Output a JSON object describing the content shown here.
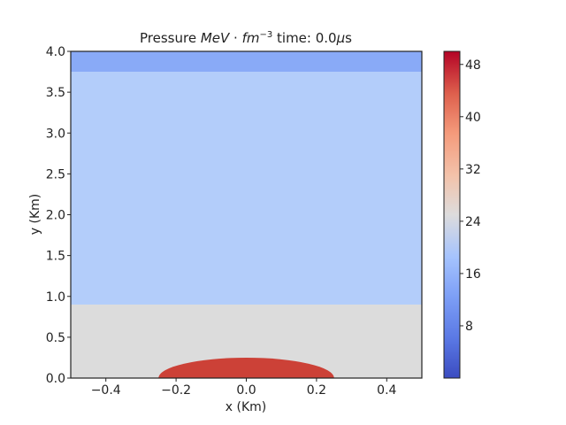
{
  "chart_data": {
    "type": "heatmap",
    "title": {
      "prefix": "Pressure ",
      "units_main": "MeV",
      "dot": " · ",
      "units_fm": "fm",
      "exponent": "−3",
      "time_text": " time: 0.0",
      "mu": "μ",
      "s": "s"
    },
    "xlabel": "x (Km)",
    "ylabel": "y (Km)",
    "xlim": [
      -0.5,
      0.5
    ],
    "ylim": [
      0.0,
      4.0
    ],
    "x_ticks": [
      {
        "value": -0.4,
        "label": "−0.4"
      },
      {
        "value": -0.2,
        "label": "−0.2"
      },
      {
        "value": 0.0,
        "label": "0.0"
      },
      {
        "value": 0.2,
        "label": "0.2"
      },
      {
        "value": 0.4,
        "label": "0.4"
      }
    ],
    "y_ticks": [
      {
        "value": 0.0,
        "label": "0.0"
      },
      {
        "value": 0.5,
        "label": "0.5"
      },
      {
        "value": 1.0,
        "label": "1.0"
      },
      {
        "value": 1.5,
        "label": "1.5"
      },
      {
        "value": 2.0,
        "label": "2.0"
      },
      {
        "value": 2.5,
        "label": "2.5"
      },
      {
        "value": 3.0,
        "label": "3.0"
      },
      {
        "value": 3.5,
        "label": "3.5"
      },
      {
        "value": 4.0,
        "label": "4.0"
      }
    ],
    "colormap": "coolwarm",
    "color_range": [
      0,
      50
    ],
    "colorbar_ticks": [
      {
        "value": 8,
        "label": "8"
      },
      {
        "value": 16,
        "label": "16"
      },
      {
        "value": 24,
        "label": "24"
      },
      {
        "value": 32,
        "label": "32"
      },
      {
        "value": 40,
        "label": "40"
      },
      {
        "value": 48,
        "label": "48"
      }
    ],
    "regions": [
      {
        "name": "base layer",
        "y_range": [
          0.0,
          0.9
        ],
        "value": 24,
        "color": "#dcdcdc"
      },
      {
        "name": "middle layer",
        "y_range": [
          0.9,
          3.75
        ],
        "value": 14,
        "color": "#b3cdfa"
      },
      {
        "name": "top layer",
        "y_range": [
          3.75,
          4.0
        ],
        "value": 10,
        "color": "#89aaf7"
      },
      {
        "name": "high-pressure dome",
        "shape": "semi-ellipse",
        "center_x": 0.0,
        "half_width": 0.25,
        "height": 0.25,
        "value": 46,
        "color": "#cc4137"
      }
    ],
    "grid": false
  }
}
